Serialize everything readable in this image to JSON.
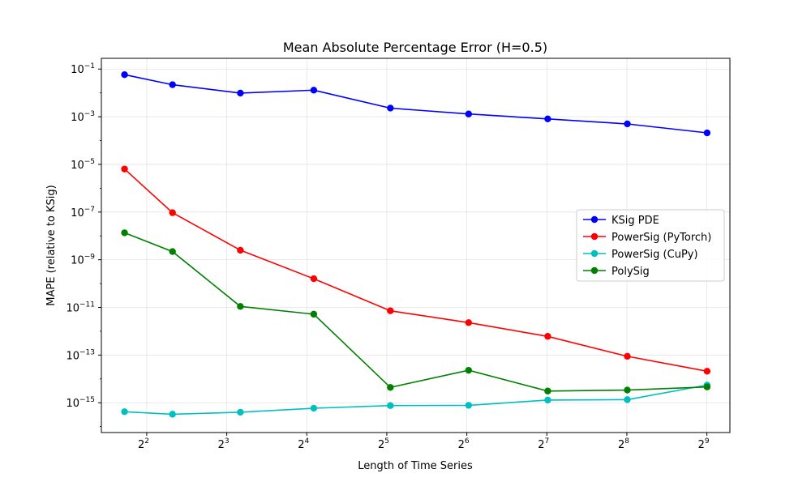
{
  "chart_data": {
    "type": "line",
    "title": "Mean Absolute Percentage Error (H=0.5)",
    "xlabel": "Length of Time Series",
    "ylabel": "MAPE (relative to KSig)",
    "x_scale": "log2",
    "y_scale": "log10",
    "xlim": [
      2.7,
      625
    ],
    "ylim_exp": [
      -16.25,
      -0.55
    ],
    "x_ticks": [
      {
        "base": "2",
        "exp": "2",
        "value": 4
      },
      {
        "base": "2",
        "exp": "3",
        "value": 8
      },
      {
        "base": "2",
        "exp": "4",
        "value": 16
      },
      {
        "base": "2",
        "exp": "5",
        "value": 32
      },
      {
        "base": "2",
        "exp": "6",
        "value": 64
      },
      {
        "base": "2",
        "exp": "7",
        "value": 128
      },
      {
        "base": "2",
        "exp": "8",
        "value": 256
      },
      {
        "base": "2",
        "exp": "9",
        "value": 512
      }
    ],
    "y_ticks": [
      {
        "base": "10",
        "exp": "−1",
        "value": -1
      },
      {
        "base": "10",
        "exp": "−3",
        "value": -3
      },
      {
        "base": "10",
        "exp": "−5",
        "value": -5
      },
      {
        "base": "10",
        "exp": "−7",
        "value": -7
      },
      {
        "base": "10",
        "exp": "−9",
        "value": -9
      },
      {
        "base": "10",
        "exp": "−11",
        "value": -11
      },
      {
        "base": "10",
        "exp": "−13",
        "value": -13
      },
      {
        "base": "10",
        "exp": "−15",
        "value": -15
      }
    ],
    "x": [
      3.3,
      5.0,
      9.0,
      17.0,
      33.0,
      65.0,
      129.0,
      257.0,
      513.0
    ],
    "grid": true,
    "legend_position": "center-right",
    "series": [
      {
        "name": "KSig PDE",
        "color": "#0000ff",
        "values": [
          0.058,
          0.022,
          0.0098,
          0.013,
          0.0023,
          0.0013,
          0.00081,
          0.0005,
          0.00021
        ]
      },
      {
        "name": "PowerSig (PyTorch)",
        "color": "#ff0000",
        "values": [
          6.4e-06,
          9.4e-08,
          2.5e-09,
          1.6e-10,
          7.2e-12,
          2.3e-12,
          6.1e-13,
          8.9e-14,
          2.1e-14
        ]
      },
      {
        "name": "PowerSig (CuPy)",
        "color": "#00bfbf",
        "values": [
          4.2e-16,
          3.3e-16,
          4e-16,
          5.9e-16,
          7.6e-16,
          7.8e-16,
          1.3e-15,
          1.35e-15,
          5.5e-15
        ]
      },
      {
        "name": "PolySig",
        "color": "#008000",
        "values": [
          1.35e-08,
          2.2e-09,
          1.1e-11,
          5.2e-12,
          4.4e-15,
          2.3e-14,
          3.1e-15,
          3.4e-15,
          4.6e-15
        ]
      }
    ]
  }
}
